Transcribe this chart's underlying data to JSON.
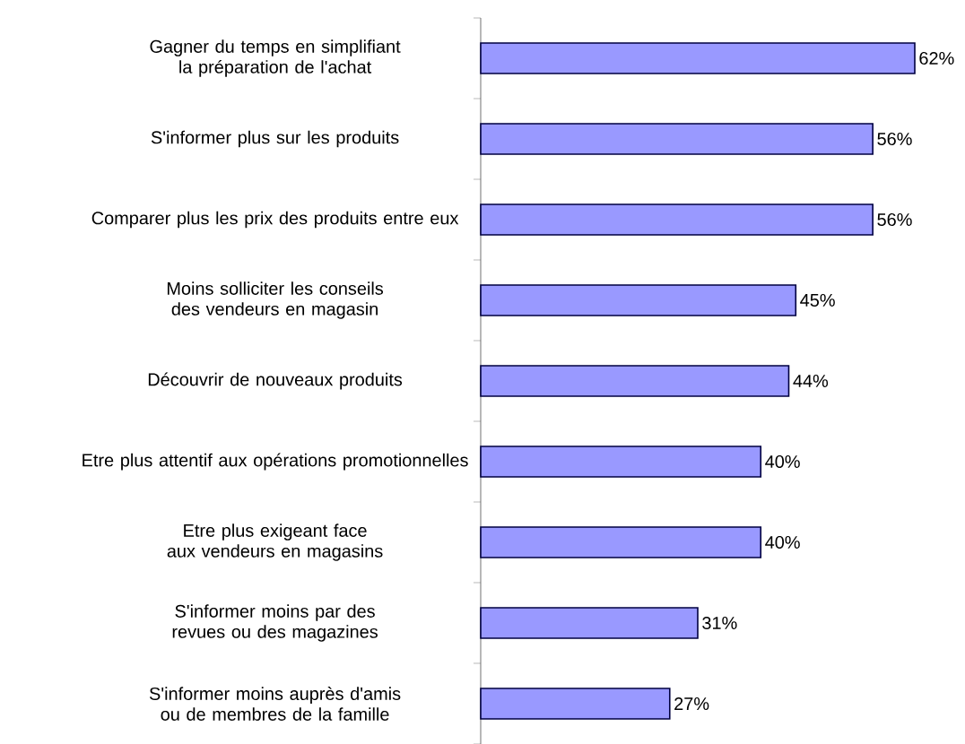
{
  "chart_data": {
    "type": "bar",
    "orientation": "horizontal",
    "categories": [
      "Gagner du temps en simplifiant la préparation de l'achat",
      "S'informer plus sur les produits",
      "Comparer plus les prix des produits entre eux",
      "Moins solliciter les conseils des vendeurs en magasin",
      "Découvrir de nouveaux produits",
      "Etre plus attentif aux opérations promotionnelles",
      "Etre plus exigeant face aux vendeurs en magasins",
      "S'informer moins par des revues ou des magazines",
      "S'informer moins auprès d'amis ou de membres de la famille"
    ],
    "values": [
      62,
      56,
      56,
      45,
      44,
      40,
      40,
      31,
      27
    ],
    "value_labels": [
      "62%",
      "56%",
      "56%",
      "45%",
      "44%",
      "40%",
      "40%",
      "31%",
      "27%"
    ],
    "color": "#9999ff",
    "xlim": [
      0,
      62
    ],
    "tick_labels": "y"
  }
}
